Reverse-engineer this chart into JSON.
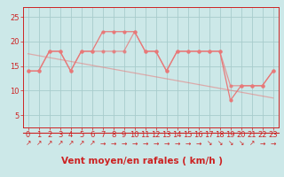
{
  "xlabel": "Vent moyen/en rafales ( km/h )",
  "xlim": [
    -0.5,
    23.5
  ],
  "ylim": [
    2.5,
    27
  ],
  "yticks": [
    5,
    10,
    15,
    20,
    25
  ],
  "xticks": [
    0,
    1,
    2,
    3,
    4,
    5,
    6,
    7,
    8,
    9,
    10,
    11,
    12,
    13,
    14,
    15,
    16,
    17,
    18,
    19,
    20,
    21,
    22,
    23
  ],
  "bg_color": "#cce8e8",
  "line_color": "#e87878",
  "grid_color": "#a8cccc",
  "gusts": [
    14,
    14,
    18,
    18,
    14,
    18,
    18,
    22,
    22,
    22,
    22,
    18,
    18,
    14,
    18,
    18,
    18,
    18,
    18,
    8,
    11,
    11,
    11,
    14
  ],
  "means": [
    14,
    14,
    18,
    18,
    14,
    18,
    18,
    18,
    18,
    18,
    22,
    18,
    18,
    14,
    18,
    18,
    18,
    18,
    18,
    11,
    11,
    11,
    11,
    14
  ],
  "trend_x": [
    0,
    23
  ],
  "trend_y": [
    17.5,
    8.5
  ],
  "arrows": [
    "↗",
    "↗",
    "↗",
    "↗",
    "↗",
    "↗",
    "↗",
    "→",
    "→",
    "→",
    "→",
    "→",
    "→",
    "→",
    "→",
    "→",
    "→",
    "↘",
    "↘",
    "↘",
    "↘",
    "↗",
    "→",
    "→"
  ],
  "tick_color": "#cc2222",
  "label_color": "#cc2222",
  "tickfont_size": 6,
  "labelfont_size": 7.5,
  "arrow_fontsize": 5.5
}
